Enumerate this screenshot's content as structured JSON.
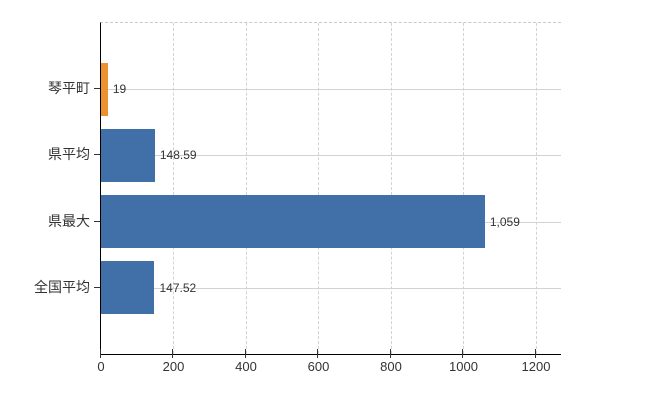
{
  "chart_data": {
    "type": "bar",
    "orientation": "horizontal",
    "title": "",
    "categories": [
      "琴平町",
      "県平均",
      "県最大",
      "全国平均"
    ],
    "values": [
      19,
      148.59,
      1059,
      147.52
    ],
    "value_labels": [
      "19",
      "148.59",
      "1,059",
      "147.52"
    ],
    "point_colors": [
      "#EC9130",
      "#4170A8",
      "#4170A8",
      "#4170A8"
    ],
    "xticks": [
      0,
      200,
      400,
      600,
      800,
      1000,
      1200
    ],
    "xtick_labels": [
      "0",
      "200",
      "400",
      "600",
      "800",
      "1000",
      "1200"
    ],
    "xlim": [
      0,
      1269
    ],
    "grid": true,
    "legend": "none",
    "colors": {
      "highlight_bar": "#EC9130",
      "default_bar": "#4170A8",
      "axis": "#000000",
      "gridline": "#d2d2d2",
      "text": "#333333",
      "background": "#ffffff"
    }
  }
}
